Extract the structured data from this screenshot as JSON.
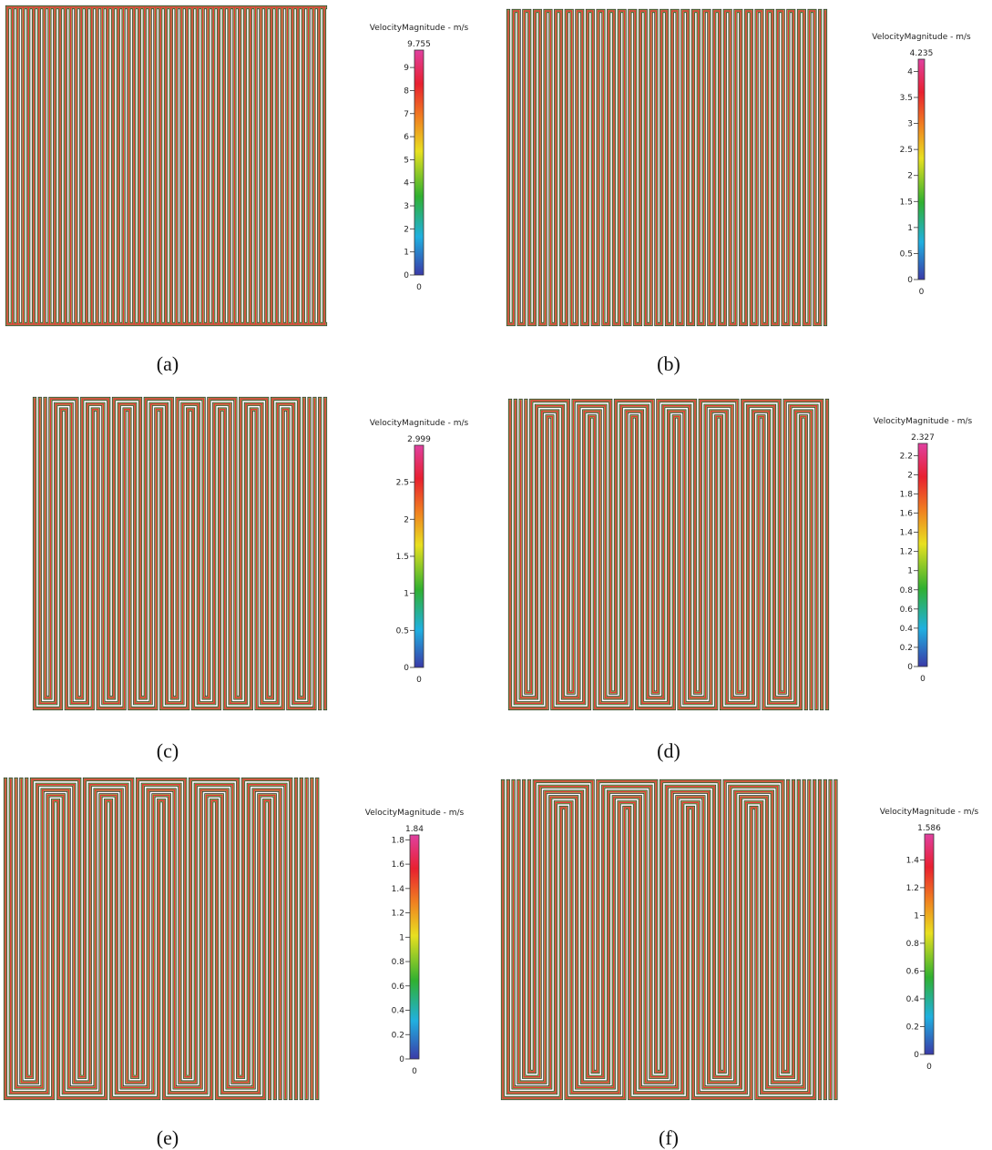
{
  "panels": [
    {
      "label": "(a)",
      "colorbar": {
        "title": "VelocityMagnitude - m/s",
        "max": 9.755,
        "min": 0,
        "ticks": [
          0,
          1,
          2,
          3,
          4,
          5,
          6,
          7,
          8,
          9
        ]
      }
    },
    {
      "label": "(b)",
      "colorbar": {
        "title": "VelocityMagnitude - m/s",
        "max": 4.235,
        "min": 0,
        "ticks": [
          0,
          0.5,
          1,
          1.5,
          2,
          2.5,
          3,
          3.5,
          4
        ]
      }
    },
    {
      "label": "(c)",
      "colorbar": {
        "title": "VelocityMagnitude - m/s",
        "max": 2.999,
        "min": 0,
        "ticks": [
          0,
          0.5,
          1,
          1.5,
          2,
          2.5
        ]
      }
    },
    {
      "label": "(d)",
      "colorbar": {
        "title": "VelocityMagnitude - m/s",
        "max": 2.327,
        "min": 0,
        "ticks": [
          0,
          0.2,
          0.4,
          0.6,
          0.8,
          1,
          1.2,
          1.4,
          1.6,
          1.8,
          2,
          2.2
        ]
      }
    },
    {
      "label": "(e)",
      "colorbar": {
        "title": "VelocityMagnitude - m/s",
        "max": 1.84,
        "min": 0,
        "ticks": [
          0,
          0.2,
          0.4,
          0.6,
          0.8,
          1,
          1.2,
          1.4,
          1.6,
          1.8
        ]
      }
    },
    {
      "label": "(f)",
      "colorbar": {
        "title": "VelocityMagnitude - m/s",
        "max": 1.586,
        "min": 0,
        "ticks": [
          0,
          0.2,
          0.4,
          0.6,
          0.8,
          1,
          1.2,
          1.4
        ]
      }
    }
  ]
}
